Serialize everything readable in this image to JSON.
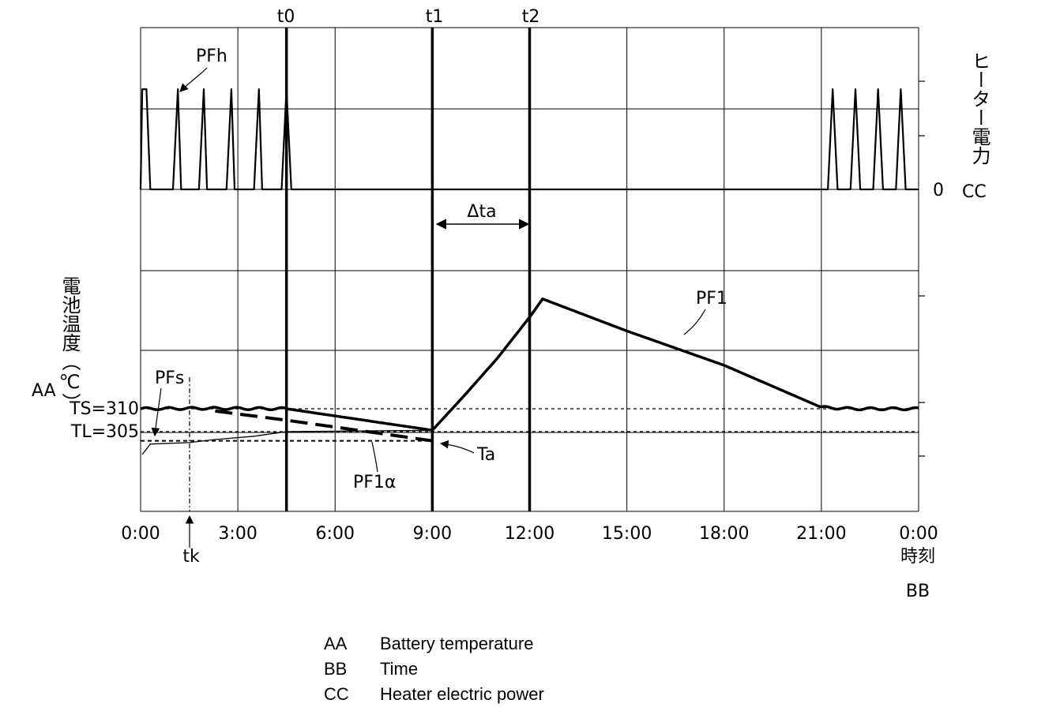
{
  "chart_data": [
    {
      "id": "heater",
      "type": "line",
      "title": "",
      "ylabel": "ヒーター電力",
      "ylabel_tag": "CC",
      "y_tick_labels": [
        "0"
      ],
      "series": [
        {
          "name": "PFh",
          "description_points_hours": [
            [
              0.0,
              0
            ],
            [
              0.05,
              1
            ],
            [
              0.18,
              1
            ],
            [
              0.3,
              0
            ],
            [
              1.0,
              0
            ],
            [
              1.15,
              1
            ],
            [
              1.25,
              0
            ],
            [
              1.8,
              0
            ],
            [
              1.95,
              1
            ],
            [
              2.05,
              0
            ],
            [
              2.65,
              0
            ],
            [
              2.8,
              1
            ],
            [
              2.9,
              0
            ],
            [
              3.5,
              0
            ],
            [
              3.65,
              1
            ],
            [
              3.75,
              0
            ],
            [
              4.35,
              0
            ],
            [
              4.5,
              1
            ],
            [
              4.65,
              0
            ],
            [
              4.65,
              0
            ],
            [
              21.2,
              0
            ],
            [
              21.2,
              0
            ],
            [
              21.35,
              1
            ],
            [
              21.5,
              0
            ],
            [
              21.9,
              0
            ],
            [
              22.05,
              1
            ],
            [
              22.2,
              0
            ],
            [
              22.6,
              0
            ],
            [
              22.75,
              1
            ],
            [
              22.9,
              0
            ],
            [
              23.3,
              0
            ],
            [
              23.45,
              1
            ],
            [
              23.6,
              0
            ],
            [
              23.9,
              0
            ],
            [
              24.0,
              0
            ]
          ]
        }
      ]
    },
    {
      "id": "battery",
      "type": "line",
      "title": "",
      "ylabel": "電池温度（℃）",
      "ylabel_tag": "AA",
      "xlabel": "時刻",
      "xlabel_tag": "BB",
      "x_tick_labels": [
        "0:00",
        "3:00",
        "6:00",
        "9:00",
        "12:00",
        "15:00",
        "18:00",
        "21:00",
        "0:00"
      ],
      "xlim_hours": [
        0,
        24
      ],
      "reference_lines": [
        {
          "label": "TS=310",
          "y": 310
        },
        {
          "label": "TL=305",
          "y": 305
        }
      ],
      "series": [
        {
          "name": "PF1",
          "points": [
            [
              0,
              310
            ],
            [
              2,
              310.1
            ],
            [
              4.5,
              310
            ],
            [
              9,
              305.3
            ],
            [
              10,
              313
            ],
            [
              11,
              321
            ],
            [
              12,
              330
            ],
            [
              12.4,
              334
            ],
            [
              15,
              327
            ],
            [
              18,
              319.5
            ],
            [
              21,
              310.3
            ],
            [
              22,
              310
            ],
            [
              24,
              310
            ]
          ]
        },
        {
          "name": "PF1α",
          "points": [
            [
              2.3,
              309.5
            ],
            [
              4.5,
              307.5
            ],
            [
              9,
              303
            ]
          ]
        },
        {
          "name": "PFs",
          "points": [
            [
              0.05,
              300
            ],
            [
              0.3,
              302.3
            ],
            [
              1.5,
              302.6
            ],
            [
              2.2,
              303.2
            ],
            [
              3.5,
              304
            ],
            [
              4.5,
              305
            ],
            [
              9,
              305.3
            ]
          ]
        },
        {
          "name": "Ta",
          "points": [
            [
              0,
              303
            ],
            [
              9,
              303
            ]
          ]
        }
      ],
      "markers": [
        {
          "label": "t0",
          "x": 4.5
        },
        {
          "label": "t1",
          "x": 9.0
        },
        {
          "label": "t2",
          "x": 12.0
        },
        {
          "label": "tk",
          "x": 1.5
        }
      ],
      "annotations": {
        "delta": "Δta",
        "pfh": "PFh",
        "pf1": "PF1",
        "pfs": "PFs",
        "pf1a": "PF1α",
        "ta": "Ta"
      }
    }
  ],
  "key": [
    {
      "abbr": "AA",
      "text": "Battery temperature"
    },
    {
      "abbr": "BB",
      "text": "Time"
    },
    {
      "abbr": "CC",
      "text": "Heater electric power"
    }
  ]
}
